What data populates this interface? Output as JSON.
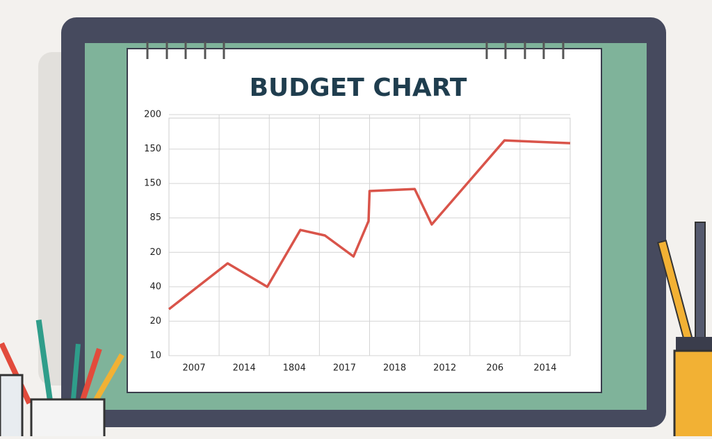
{
  "chart_data": {
    "type": "line",
    "title": "BUDGET CHART",
    "x": [
      0,
      1.17,
      1.96,
      2.62,
      3.11,
      3.68,
      3.98,
      4.0,
      4.9,
      5.24,
      6.69,
      8
    ],
    "values": [
      1.35,
      2.68,
      2.0,
      3.65,
      3.49,
      2.88,
      3.91,
      4.78,
      4.84,
      3.81,
      6.25,
      6.17
    ],
    "color": "#d9544a",
    "xlim": [
      0,
      8
    ],
    "xticks": [
      {
        "value": 0.5,
        "label": "2007"
      },
      {
        "value": 1.5,
        "label": "2014"
      },
      {
        "value": 2.5,
        "label": "1804"
      },
      {
        "value": 3.5,
        "label": "2017"
      },
      {
        "value": 4.5,
        "label": "2018"
      },
      {
        "value": 5.5,
        "label": "2012"
      },
      {
        "value": 6.5,
        "label": "206"
      },
      {
        "value": 7.5,
        "label": "2014"
      }
    ],
    "ylim": [
      0,
      7
    ],
    "yticks": [
      {
        "value": 0,
        "label": "10"
      },
      {
        "value": 1,
        "label": "20"
      },
      {
        "value": 2,
        "label": "40"
      },
      {
        "value": 3,
        "label": "20"
      },
      {
        "value": 4,
        "label": "85"
      },
      {
        "value": 5,
        "label": "150"
      },
      {
        "value": 6,
        "label": "150"
      },
      {
        "value": 7,
        "label": "200"
      }
    ],
    "grid": true
  }
}
